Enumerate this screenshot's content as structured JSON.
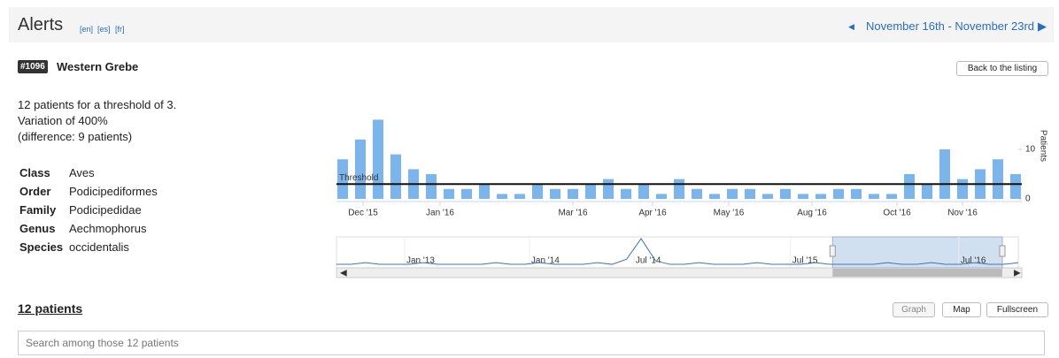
{
  "header": {
    "title": "Alerts",
    "languages": [
      "[en]",
      "[es]",
      "[fr]"
    ],
    "period": "November 16th - November 23rd"
  },
  "alert": {
    "id": "#1096",
    "name": "Western Grebe",
    "back_button": "Back to the listing",
    "summary": [
      "12 patients for a threshold of 3.",
      "Variation of 400%",
      "(difference: 9 patients)"
    ],
    "taxonomy": [
      {
        "rank": "Class",
        "value": "Aves"
      },
      {
        "rank": "Order",
        "value": "Podicipediformes"
      },
      {
        "rank": "Family",
        "value": "Podicipedidae"
      },
      {
        "rank": "Genus",
        "value": "Aechmophorus"
      },
      {
        "rank": "Species",
        "value": "occidentalis"
      }
    ]
  },
  "chart_data": {
    "type": "bar",
    "values": [
      8,
      12,
      16,
      9,
      6,
      5,
      2,
      2,
      3,
      1,
      1,
      3,
      2,
      2,
      3,
      4,
      2,
      3,
      1,
      4,
      2,
      1,
      2,
      2,
      1,
      2,
      1,
      1,
      2,
      2,
      1,
      1,
      5,
      3,
      10,
      4,
      6,
      8,
      5
    ],
    "color": "#7cb5ec",
    "xlim": [
      -0.5,
      38.5
    ],
    "ylim": [
      0,
      19
    ],
    "yticks": [
      0,
      10
    ],
    "y_label": "Patients",
    "xticks": [
      {
        "value": 1.15,
        "label": "Dec '15"
      },
      {
        "value": 5.5,
        "label": "Jan '16"
      },
      {
        "value": 13,
        "label": "Mar '16"
      },
      {
        "value": 17.5,
        "label": "Apr '16"
      },
      {
        "value": 21.8,
        "label": "May '16"
      },
      {
        "value": 26.5,
        "label": "Aug '16"
      },
      {
        "value": 31.3,
        "label": "Oct '16"
      },
      {
        "value": 35,
        "label": "Nov '16"
      }
    ],
    "threshold": {
      "value": 3,
      "label": "Threshold"
    },
    "navigator": {
      "type": "line",
      "color": "#4572a7",
      "xlim": [
        0,
        47
      ],
      "ylim": [
        0,
        17
      ],
      "values": [
        1,
        1,
        2,
        1,
        1,
        1,
        2,
        1,
        1,
        1,
        1,
        2,
        1,
        1,
        2,
        1,
        1,
        1,
        2,
        1,
        4,
        16,
        3,
        1,
        1,
        2,
        1,
        1,
        1,
        2,
        1,
        1,
        1,
        2,
        1,
        1,
        1,
        1,
        2,
        1,
        1,
        2,
        1,
        1,
        2,
        1,
        1,
        2
      ],
      "xticks": [
        {
          "value": 4.7,
          "label": "Jan '13"
        },
        {
          "value": 13.3,
          "label": "Jan '14"
        },
        {
          "value": 20.5,
          "label": "Jul '14"
        },
        {
          "value": 31.3,
          "label": "Jul '15"
        },
        {
          "value": 42.9,
          "label": "Jul '16"
        }
      ],
      "selection": [
        34.2,
        45.9
      ]
    }
  },
  "patients": {
    "title": "12 patients",
    "buttons": [
      "Graph",
      "Map",
      "Fullscreen"
    ],
    "search_placeholder": "Search among those 12 patients"
  }
}
